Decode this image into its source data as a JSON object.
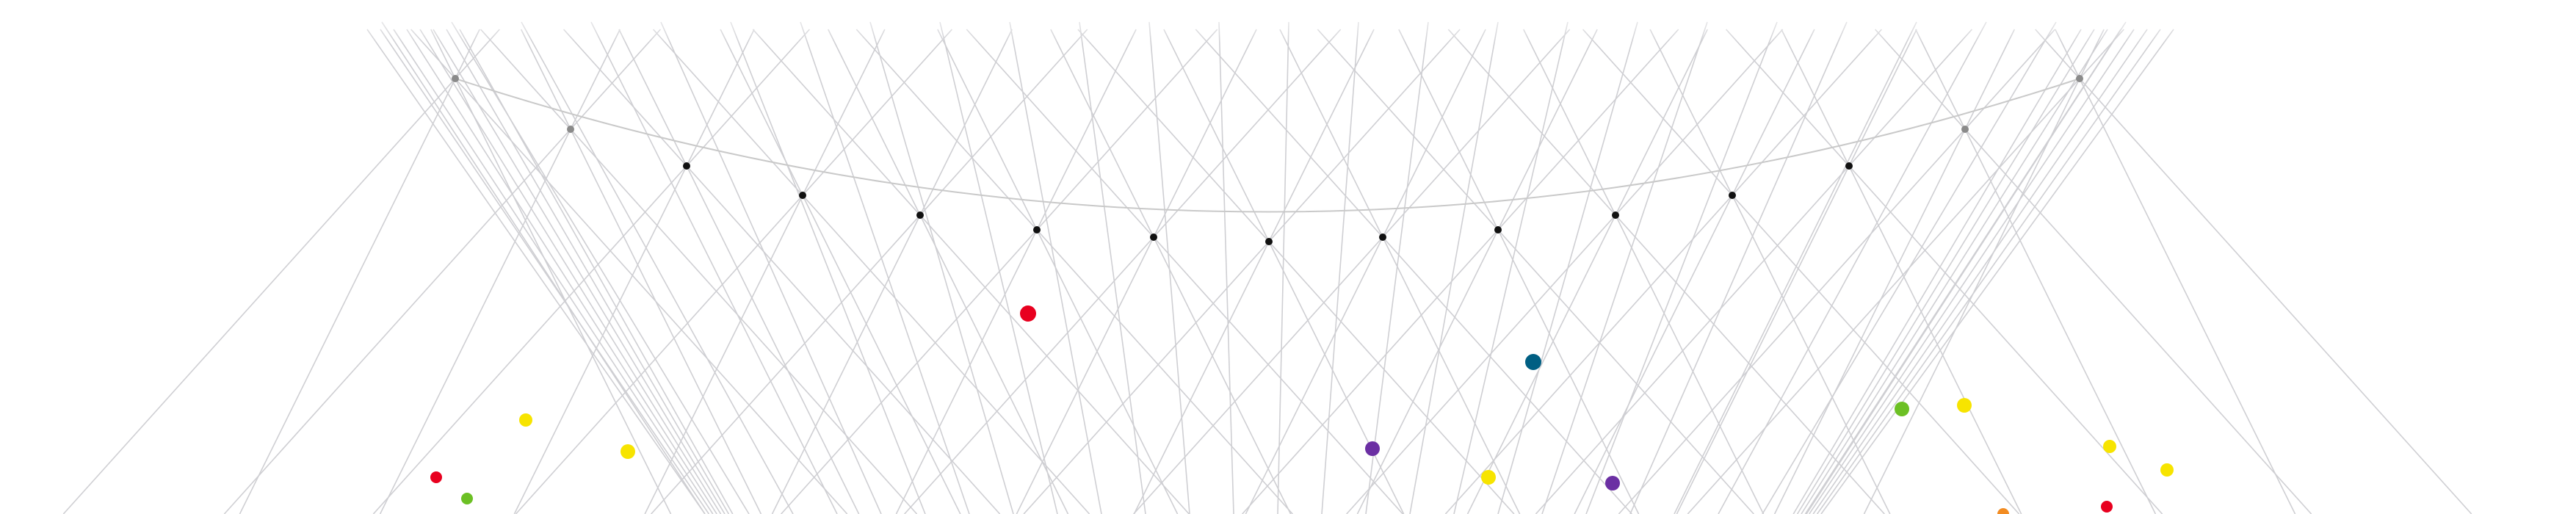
{
  "scene": {
    "background_color": "#ffffff",
    "line_color": "#cfcfd3",
    "node_color": "#111111"
  },
  "dot_colors": {
    "red": "#e8001f",
    "teal": "#005f83",
    "purple": "#6b2fa3",
    "yellow": "#f7e400",
    "green": "#6cc024",
    "orange": "#f28c22"
  }
}
